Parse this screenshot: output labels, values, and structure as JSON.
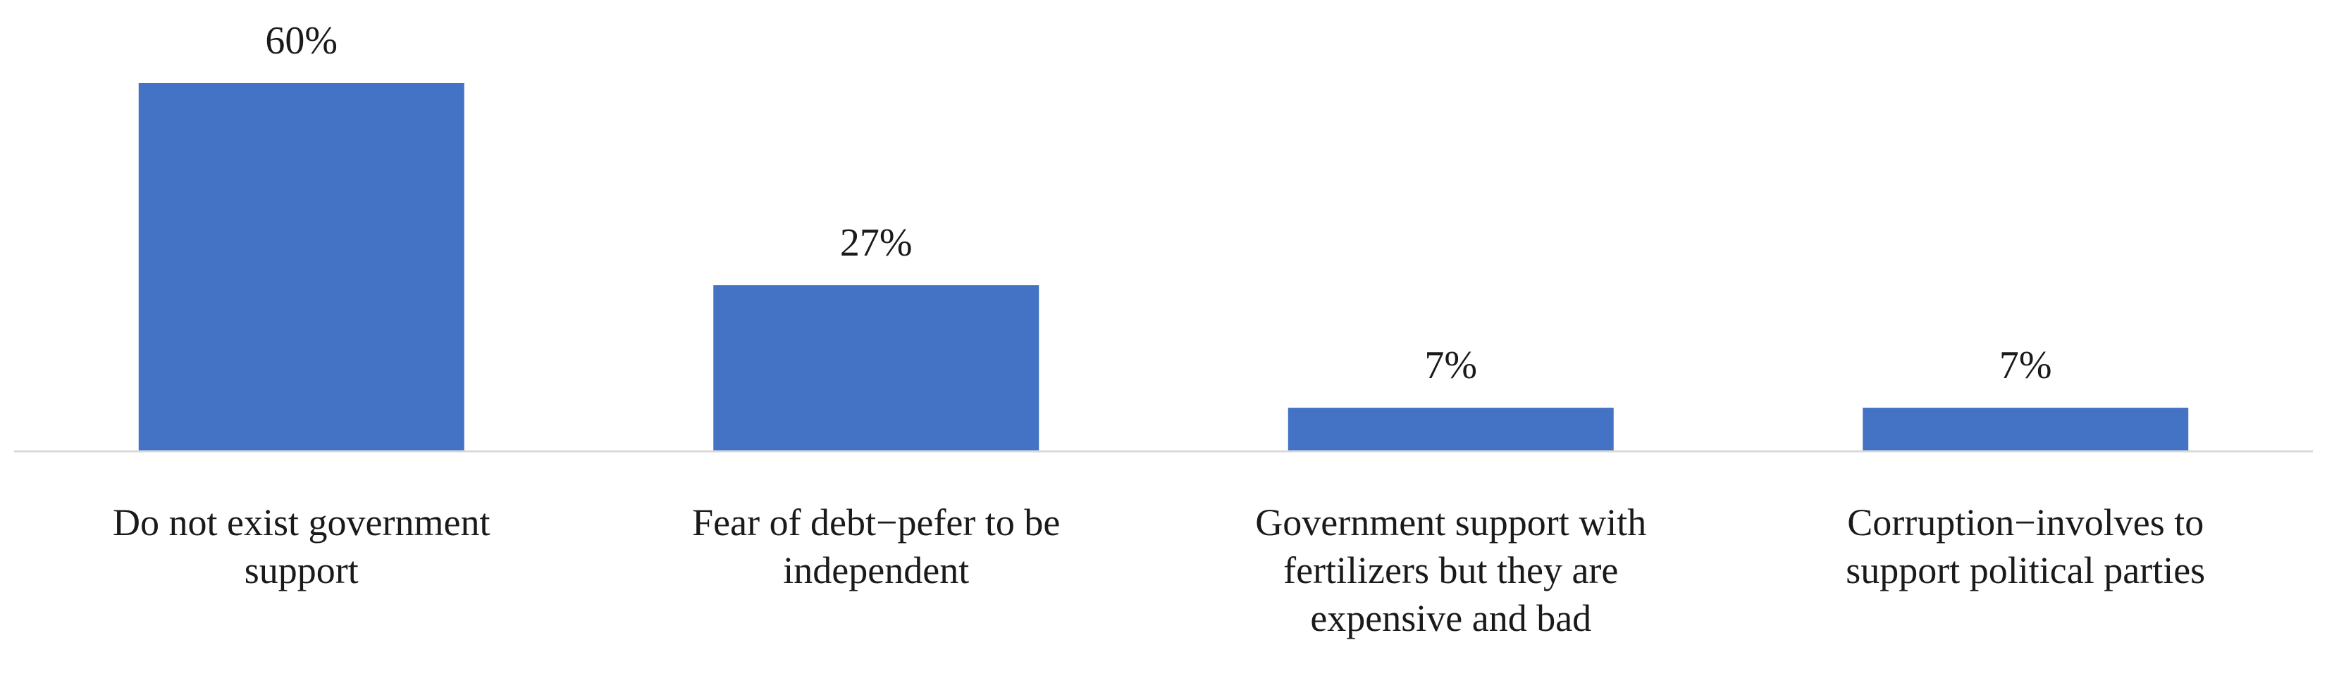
{
  "chart_data": {
    "type": "bar",
    "categories": [
      [
        "Do not exist government",
        "support"
      ],
      [
        "Fear of debt−pefer to be",
        "independent"
      ],
      [
        "Government support with",
        "fertilizers but they are",
        "expensive and bad"
      ],
      [
        "Corruption−involves to",
        "support political parties"
      ]
    ],
    "values": [
      60,
      27,
      7,
      7
    ],
    "data_labels": [
      "60%",
      "27%",
      "7%",
      "7%"
    ],
    "title": "",
    "xlabel": "",
    "ylabel": "",
    "ylim": [
      0,
      60
    ],
    "grid": false,
    "legend": "none",
    "colors": {
      "bar": "#4472C4",
      "axis": "#d9d9d9",
      "text": "#1a1a1a"
    }
  }
}
